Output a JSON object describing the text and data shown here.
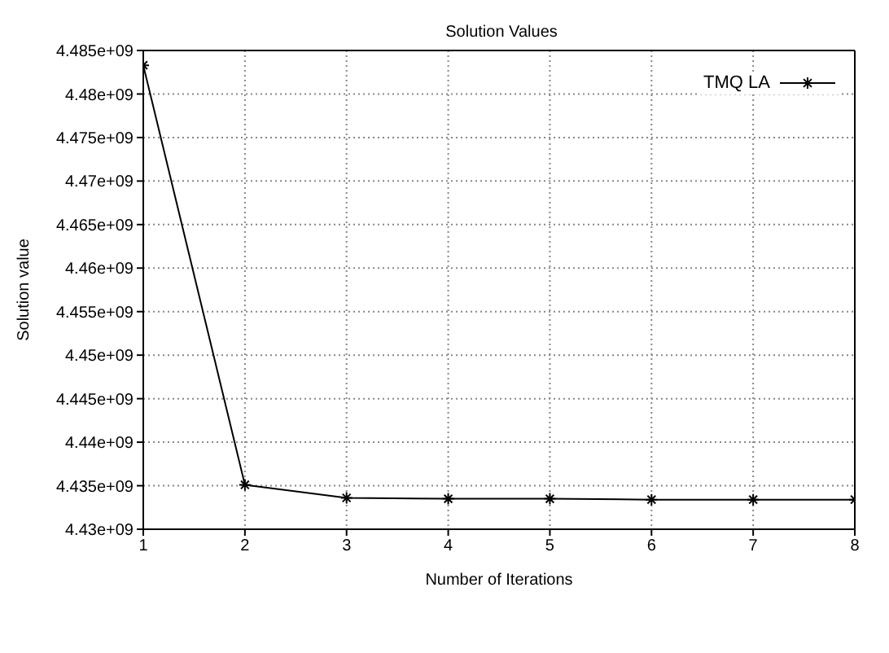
{
  "chart_data": {
    "type": "line",
    "title": "Solution Values",
    "xlabel": "Number of Iterations",
    "ylabel": "Solution value",
    "x": [
      1,
      2,
      3,
      4,
      5,
      6,
      7,
      8
    ],
    "series": [
      {
        "name": "TMQ LA",
        "color": "#000000",
        "values": [
          4483300000,
          4435100000,
          4433600000,
          4433500000,
          4433500000,
          4433400000,
          4433400000,
          4433400000
        ]
      }
    ],
    "xlim": [
      1,
      8
    ],
    "xticks": [
      1,
      2,
      3,
      4,
      5,
      6,
      7,
      8
    ],
    "ylim": [
      4430000000,
      4485000000
    ],
    "yticks": [
      {
        "value": 4430000000,
        "label": "4.43e+09"
      },
      {
        "value": 4435000000,
        "label": "4.435e+09"
      },
      {
        "value": 4440000000,
        "label": "4.44e+09"
      },
      {
        "value": 4445000000,
        "label": "4.445e+09"
      },
      {
        "value": 4450000000,
        "label": "4.45e+09"
      },
      {
        "value": 4455000000,
        "label": "4.455e+09"
      },
      {
        "value": 4460000000,
        "label": "4.46e+09"
      },
      {
        "value": 4465000000,
        "label": "4.465e+09"
      },
      {
        "value": 4470000000,
        "label": "4.47e+09"
      },
      {
        "value": 4475000000,
        "label": "4.475e+09"
      },
      {
        "value": 4480000000,
        "label": "4.48e+09"
      },
      {
        "value": 4485000000,
        "label": "4.485e+09"
      }
    ],
    "grid": true,
    "legend": "top right",
    "marker": "cross",
    "line_style": "solid"
  }
}
